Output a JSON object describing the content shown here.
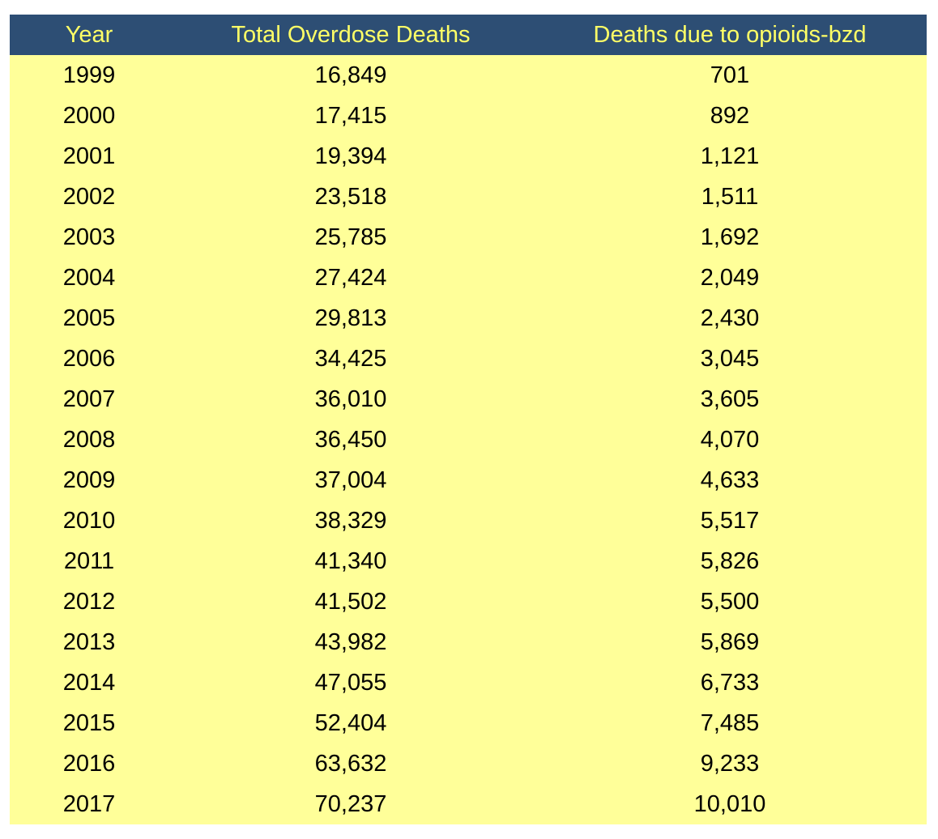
{
  "table": {
    "columns": [
      "Year",
      "Total Overdose Deaths",
      "Deaths due to opioids-bzd"
    ],
    "rows": [
      [
        "1999",
        "16,849",
        "701"
      ],
      [
        "2000",
        "17,415",
        "892"
      ],
      [
        "2001",
        "19,394",
        "1,121"
      ],
      [
        "2002",
        "23,518",
        "1,511"
      ],
      [
        "2003",
        "25,785",
        "1,692"
      ],
      [
        "2004",
        "27,424",
        "2,049"
      ],
      [
        "2005",
        "29,813",
        "2,430"
      ],
      [
        "2006",
        "34,425",
        "3,045"
      ],
      [
        "2007",
        "36,010",
        "3,605"
      ],
      [
        "2008",
        "36,450",
        "4,070"
      ],
      [
        "2009",
        "37,004",
        "4,633"
      ],
      [
        "2010",
        "38,329",
        "5,517"
      ],
      [
        "2011",
        "41,340",
        "5,826"
      ],
      [
        "2012",
        "41,502",
        "5,500"
      ],
      [
        "2013",
        "43,982",
        "5,869"
      ],
      [
        "2014",
        "47,055",
        "6,733"
      ],
      [
        "2015",
        "52,404",
        "7,485"
      ],
      [
        "2016",
        "63,632",
        "9,233"
      ],
      [
        "2017",
        "70,237",
        "10,010"
      ]
    ]
  },
  "colors": {
    "header_bg": "#2d4e74",
    "header_text": "#ffff66",
    "body_bg": "#ffff99",
    "body_text": "#000000"
  }
}
